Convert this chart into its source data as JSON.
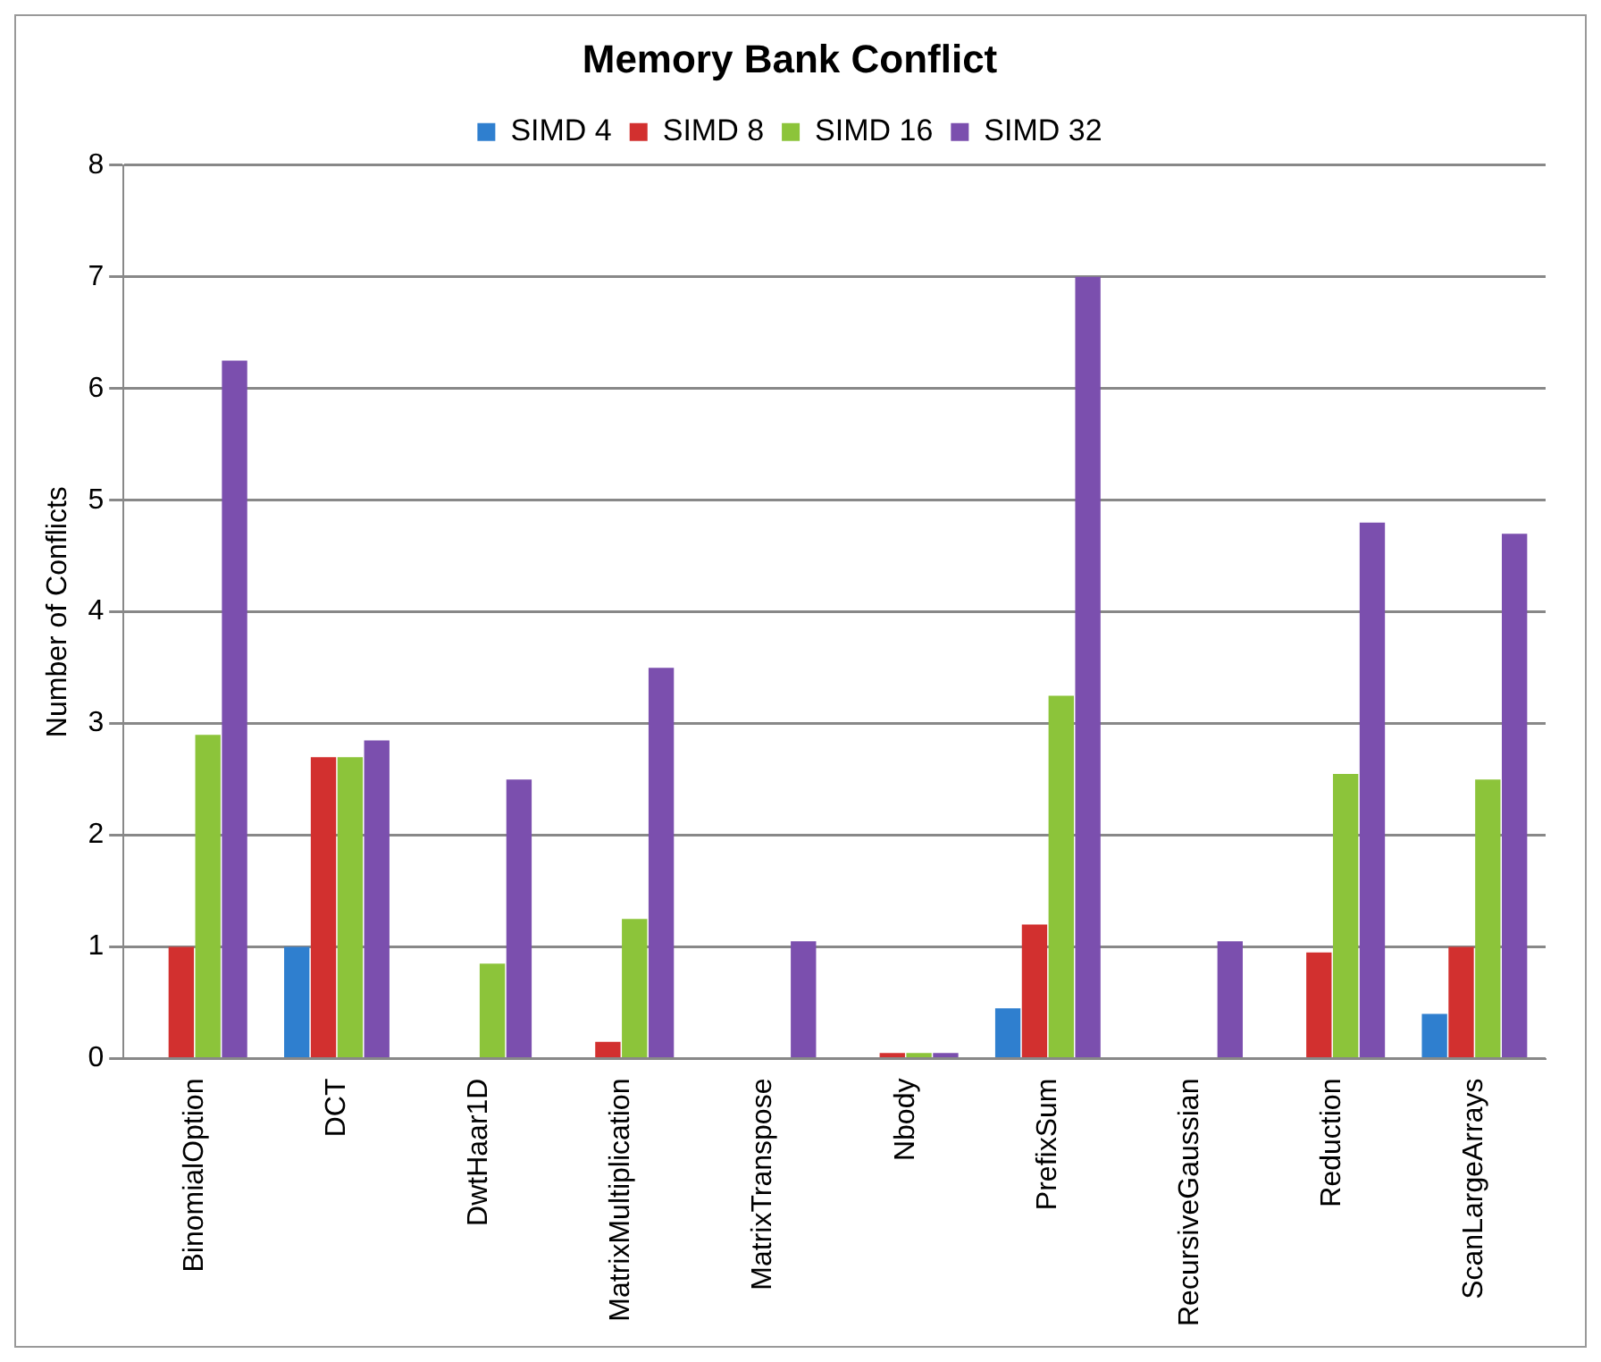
{
  "chart_data": {
    "type": "bar",
    "title": "Memory Bank Conflict",
    "ylabel": "Number of Conflicts",
    "categories": [
      "BinomialOption",
      "DCT",
      "DwtHaar1D",
      "MatrixMultiplication",
      "MatrixTranspose",
      "Nbody",
      "PrefixSum",
      "RecursiveGaussian",
      "Reduction",
      "ScanLargeArrays"
    ],
    "series": [
      {
        "name": "SIMD 4",
        "color": "#2f7fcf",
        "values": [
          0,
          1.0,
          0,
          0,
          0,
          0,
          0.45,
          0,
          0,
          0.4
        ]
      },
      {
        "name": "SIMD 8",
        "color": "#d2302f",
        "values": [
          1.0,
          2.7,
          0,
          0.15,
          0,
          0.05,
          1.2,
          0,
          0.95,
          1.0
        ]
      },
      {
        "name": "SIMD 16",
        "color": "#8cc43a",
        "values": [
          2.9,
          2.7,
          0.85,
          1.25,
          0,
          0.05,
          3.25,
          0,
          2.55,
          2.5
        ]
      },
      {
        "name": "SIMD 32",
        "color": "#7b4fae",
        "values": [
          6.25,
          2.85,
          2.5,
          3.5,
          1.05,
          0.05,
          7,
          1.05,
          4.8,
          4.7
        ]
      }
    ],
    "ylim": [
      0,
      8
    ],
    "yticks": [
      0,
      1,
      2,
      3,
      4,
      5,
      6,
      7,
      8
    ],
    "grid": "y",
    "legend": "top"
  }
}
